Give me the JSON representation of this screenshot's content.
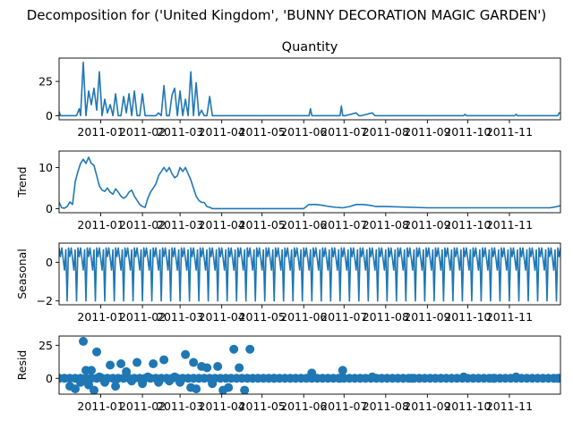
{
  "figure": {
    "suptitle": "Decomposition for ('United Kingdom', 'BUNNY DECORATION MAGIC GARDEN')"
  },
  "chart_data": [
    {
      "type": "line",
      "title": "Quantity",
      "ylabel": "",
      "xlim": [
        "2010-12-01",
        "2011-12-09"
      ],
      "ylim": [
        -3,
        42
      ],
      "yticks": [
        0,
        25
      ],
      "xticks": [
        "2011-01",
        "2011-02",
        "2011-03",
        "2011-04",
        "2011-05",
        "2011-06",
        "2011-07",
        "2011-08",
        "2011-09",
        "2011-10",
        "2011-11"
      ],
      "color": "#1f77b4",
      "x": [
        "2010-12-01",
        "2010-12-02",
        "2010-12-03",
        "2010-12-05",
        "2010-12-07",
        "2010-12-09",
        "2010-12-10",
        "2010-12-12",
        "2010-12-14",
        "2010-12-16",
        "2010-12-17",
        "2010-12-19",
        "2010-12-21",
        "2010-12-23",
        "2010-12-25",
        "2010-12-27",
        "2010-12-29",
        "2010-12-31",
        "2011-01-02",
        "2011-01-04",
        "2011-01-06",
        "2011-01-08",
        "2011-01-10",
        "2011-01-12",
        "2011-01-14",
        "2011-01-16",
        "2011-01-18",
        "2011-01-20",
        "2011-01-22",
        "2011-01-24",
        "2011-01-26",
        "2011-01-28",
        "2011-01-30",
        "2011-02-01",
        "2011-02-03",
        "2011-02-05",
        "2011-02-07",
        "2011-02-09",
        "2011-02-11",
        "2011-02-13",
        "2011-02-15",
        "2011-02-17",
        "2011-02-19",
        "2011-02-21",
        "2011-02-23",
        "2011-02-25",
        "2011-02-27",
        "2011-03-01",
        "2011-03-03",
        "2011-03-05",
        "2011-03-07",
        "2011-03-09",
        "2011-03-11",
        "2011-03-13",
        "2011-03-15",
        "2011-03-17",
        "2011-03-19",
        "2011-03-21",
        "2011-03-23",
        "2011-03-25",
        "2011-03-27",
        "2011-03-29",
        "2011-03-31",
        "2011-04-02",
        "2011-04-04",
        "2011-04-06",
        "2011-04-08",
        "2011-04-10",
        "2011-04-12",
        "2011-04-14",
        "2011-04-16",
        "2011-04-18",
        "2011-04-20",
        "2011-04-22",
        "2011-04-24",
        "2011-05-10",
        "2011-06-05",
        "2011-06-06",
        "2011-06-07",
        "2011-06-10",
        "2011-06-28",
        "2011-06-29",
        "2011-06-30",
        "2011-07-02",
        "2011-07-10",
        "2011-07-12",
        "2011-07-14",
        "2011-07-22",
        "2011-07-24",
        "2011-07-26",
        "2011-08-05",
        "2011-09-28",
        "2011-09-29",
        "2011-09-30",
        "2011-11-05",
        "2011-11-06",
        "2011-11-07",
        "2011-12-06",
        "2011-12-07",
        "2011-12-08",
        "2011-12-09"
      ],
      "values": [
        3,
        0,
        0,
        0,
        0,
        0,
        0,
        0,
        0,
        5,
        0,
        39,
        0,
        18,
        8,
        20,
        4,
        32,
        0,
        12,
        2,
        8,
        0,
        16,
        0,
        0,
        14,
        2,
        16,
        0,
        18,
        0,
        0,
        16,
        0,
        0,
        0,
        0,
        0,
        2,
        0,
        22,
        0,
        0,
        15,
        20,
        0,
        18,
        0,
        12,
        0,
        32,
        0,
        24,
        0,
        4,
        0,
        0,
        14,
        0,
        0,
        0,
        0,
        0,
        0,
        0,
        0,
        0,
        0,
        0,
        0,
        0,
        0,
        0,
        0,
        0,
        0,
        5,
        0,
        0,
        0,
        7,
        0,
        0,
        2,
        0,
        0,
        2,
        0,
        0,
        0,
        0,
        1,
        0,
        0,
        1,
        0,
        0,
        0,
        2,
        2
      ]
    },
    {
      "type": "line",
      "title": "",
      "ylabel": "Trend",
      "xlim": [
        "2010-12-01",
        "2011-12-09"
      ],
      "ylim": [
        -1,
        14
      ],
      "yticks": [
        0,
        10
      ],
      "xticks": [
        "2011-01",
        "2011-02",
        "2011-03",
        "2011-04",
        "2011-05",
        "2011-06",
        "2011-07",
        "2011-08",
        "2011-09",
        "2011-10",
        "2011-11"
      ],
      "color": "#1f77b4",
      "x": [
        "2010-12-01",
        "2010-12-03",
        "2010-12-05",
        "2010-12-07",
        "2010-12-09",
        "2010-12-11",
        "2010-12-13",
        "2010-12-15",
        "2010-12-17",
        "2010-12-19",
        "2010-12-21",
        "2010-12-23",
        "2010-12-25",
        "2010-12-27",
        "2010-12-29",
        "2010-12-31",
        "2011-01-02",
        "2011-01-04",
        "2011-01-06",
        "2011-01-08",
        "2011-01-10",
        "2011-01-12",
        "2011-01-14",
        "2011-01-16",
        "2011-01-18",
        "2011-01-20",
        "2011-01-22",
        "2011-01-24",
        "2011-01-26",
        "2011-01-28",
        "2011-01-30",
        "2011-02-01",
        "2011-02-03",
        "2011-02-05",
        "2011-02-07",
        "2011-02-09",
        "2011-02-11",
        "2011-02-13",
        "2011-02-15",
        "2011-02-17",
        "2011-02-19",
        "2011-02-21",
        "2011-02-23",
        "2011-02-25",
        "2011-02-27",
        "2011-03-01",
        "2011-03-03",
        "2011-03-05",
        "2011-03-07",
        "2011-03-09",
        "2011-03-11",
        "2011-03-13",
        "2011-03-15",
        "2011-03-17",
        "2011-03-19",
        "2011-03-21",
        "2011-03-23",
        "2011-03-25",
        "2011-03-27",
        "2011-03-29",
        "2011-04-01",
        "2011-04-05",
        "2011-04-10",
        "2011-05-01",
        "2011-06-01",
        "2011-06-05",
        "2011-06-10",
        "2011-06-15",
        "2011-06-20",
        "2011-06-25",
        "2011-06-30",
        "2011-07-05",
        "2011-07-10",
        "2011-07-15",
        "2011-07-20",
        "2011-07-25",
        "2011-08-01",
        "2011-09-01",
        "2011-10-01",
        "2011-11-01",
        "2011-12-01",
        "2011-12-05",
        "2011-12-09"
      ],
      "values": [
        1.5,
        0.2,
        0.1,
        0.5,
        1.6,
        1,
        6.5,
        9,
        11,
        12,
        11,
        12.5,
        11,
        10.5,
        8,
        5.5,
        4.5,
        4.2,
        5,
        4,
        3.5,
        4.8,
        4,
        3,
        2.5,
        3,
        4,
        4.5,
        3,
        2,
        1,
        0.5,
        0.3,
        2.5,
        4,
        5,
        6,
        8,
        9,
        10,
        9,
        10,
        8.5,
        7.5,
        8,
        10,
        9,
        10,
        8.5,
        7,
        5,
        3,
        2,
        1.5,
        1.5,
        0.5,
        0.3,
        0,
        0,
        0,
        0,
        0,
        0,
        0,
        0,
        1,
        1,
        0.8,
        0.5,
        0.3,
        0.2,
        0.5,
        1,
        1,
        0.8,
        0.5,
        0.5,
        0.2,
        0.2,
        0.2,
        0.2,
        0.4,
        0.7
      ]
    },
    {
      "type": "line",
      "title": "",
      "ylabel": "Seasonal",
      "xlim": [
        "2010-12-01",
        "2011-12-09"
      ],
      "ylim": [
        -2.2,
        1.0
      ],
      "yticks": [
        -2,
        0
      ],
      "xticks": [
        "2011-01",
        "2011-02",
        "2011-03",
        "2011-04",
        "2011-05",
        "2011-06",
        "2011-07",
        "2011-08",
        "2011-09",
        "2011-10",
        "2011-11"
      ],
      "color": "#1f77b4",
      "start": "2010-12-01",
      "end": "2011-12-09",
      "period_days": 7,
      "pattern": [
        0.75,
        0.3,
        0.75,
        0.2,
        -0.4,
        0.65,
        -2.0
      ]
    },
    {
      "type": "scatter",
      "title": "",
      "ylabel": "Resid",
      "xlim": [
        "2010-12-01",
        "2011-12-09"
      ],
      "ylim": [
        -12,
        32
      ],
      "yticks": [
        0,
        25
      ],
      "xticks": [
        "2011-01",
        "2011-02",
        "2011-03",
        "2011-04",
        "2011-05",
        "2011-06",
        "2011-07",
        "2011-08",
        "2011-09",
        "2011-10",
        "2011-11"
      ],
      "color": "#1f77b4",
      "x": [
        "2010-12-01",
        "2010-12-05",
        "2010-12-09",
        "2010-12-13",
        "2010-12-17",
        "2010-12-19",
        "2010-12-21",
        "2010-12-23",
        "2010-12-25",
        "2010-12-27",
        "2010-12-29",
        "2010-12-31",
        "2011-01-04",
        "2011-01-08",
        "2011-01-12",
        "2011-01-16",
        "2011-01-20",
        "2011-01-24",
        "2011-01-28",
        "2011-02-01",
        "2011-02-05",
        "2011-02-09",
        "2011-02-13",
        "2011-02-17",
        "2011-02-21",
        "2011-02-25",
        "2011-03-01",
        "2011-03-05",
        "2011-03-09",
        "2011-03-11",
        "2011-03-13",
        "2011-03-17",
        "2011-03-21",
        "2011-03-25",
        "2011-03-29",
        "2011-04-02",
        "2011-04-06",
        "2011-04-10",
        "2011-04-14",
        "2011-04-18",
        "2011-04-22",
        "2011-05-10",
        "2011-06-07",
        "2011-06-28",
        "2011-06-30",
        "2011-07-22",
        "2011-08-20",
        "2011-09-28",
        "2011-10-20",
        "2011-11-06",
        "2011-12-07"
      ],
      "values": [
        0,
        0,
        -6,
        -8,
        -3,
        28,
        6,
        -5,
        6,
        -9,
        20,
        1,
        -3,
        10,
        -6,
        11,
        5,
        -2,
        12,
        -4,
        1,
        11,
        -3,
        14,
        -2,
        1,
        -3,
        18,
        -7,
        12,
        -8,
        9,
        8,
        -4,
        9,
        -9,
        -7,
        22,
        8,
        -9,
        22,
        0,
        4,
        0,
        6,
        1,
        0,
        1,
        0,
        1,
        0
      ]
    }
  ]
}
